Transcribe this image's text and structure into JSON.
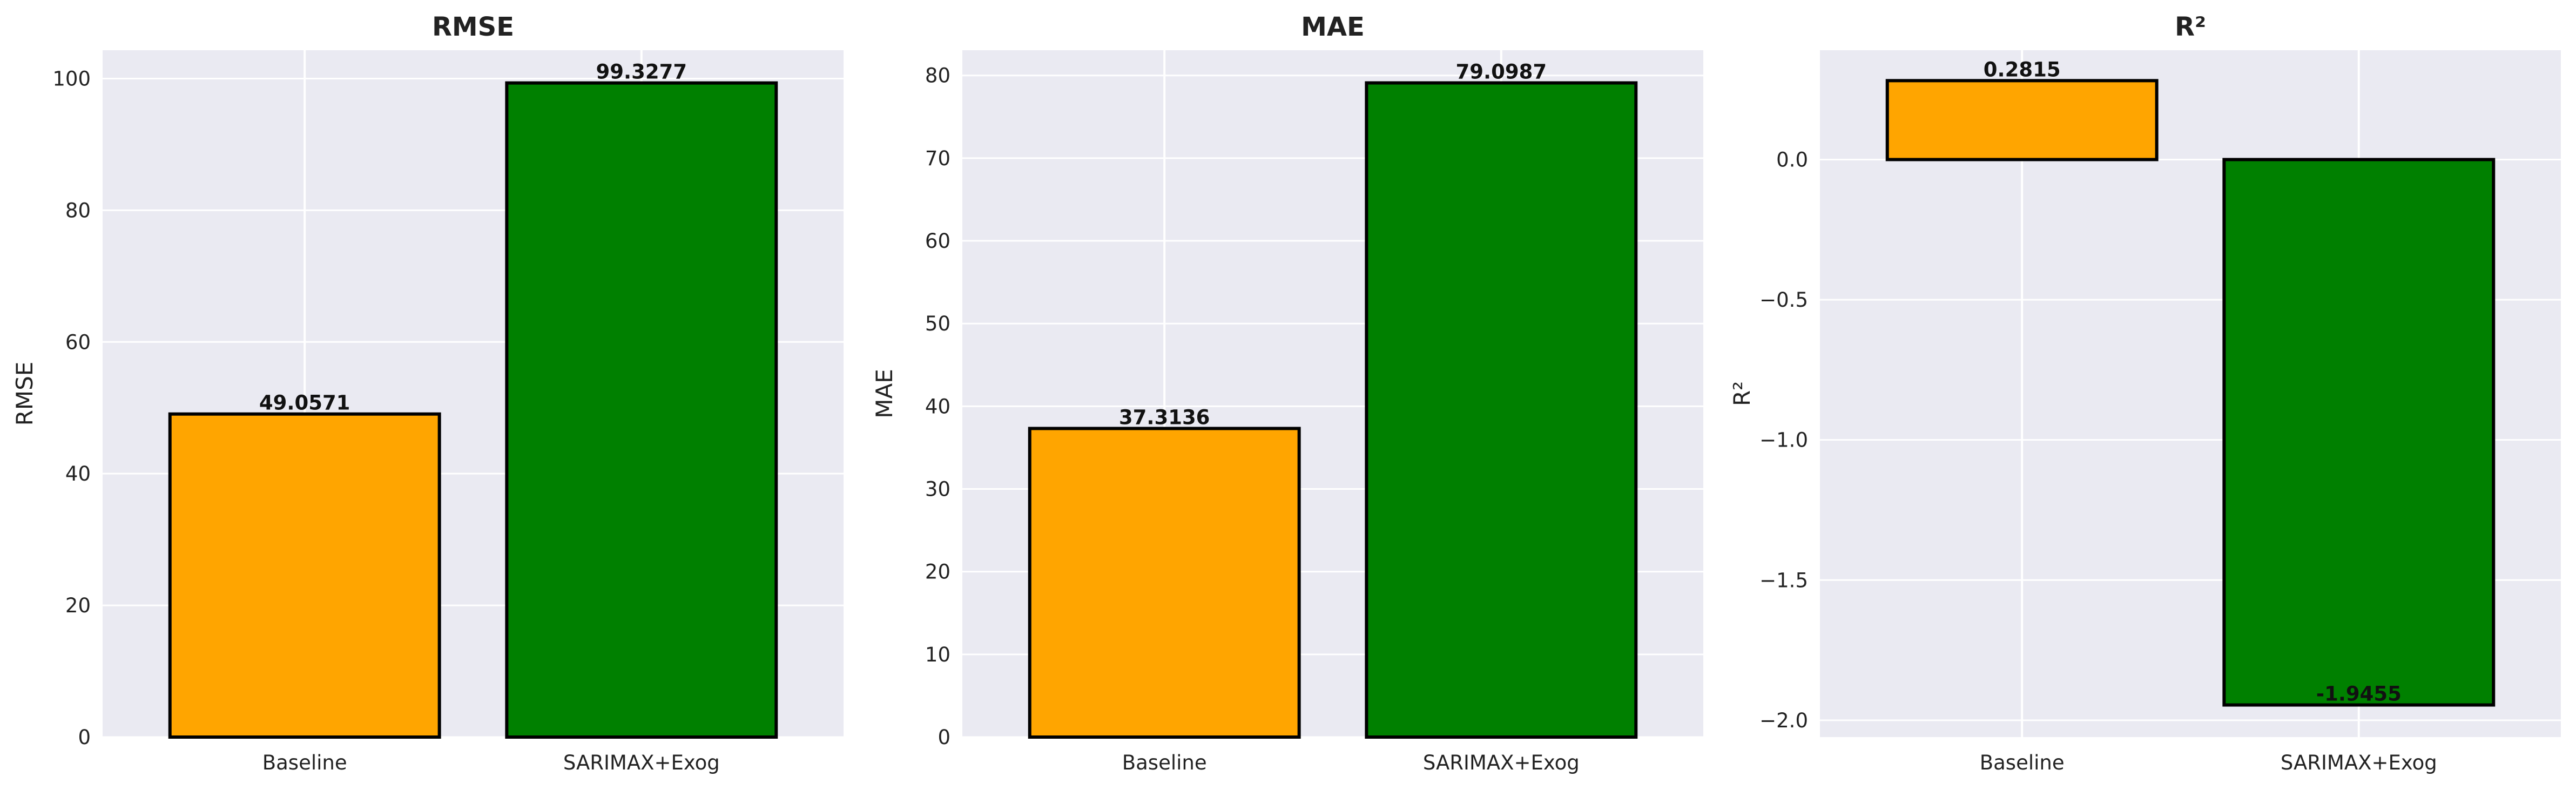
{
  "chart_data": [
    {
      "type": "bar",
      "title": "RMSE",
      "ylabel": "RMSE",
      "xlabel": "",
      "categories": [
        "Baseline",
        "SARIMAX+Exog"
      ],
      "values": [
        49.0571,
        99.3277
      ],
      "value_labels": [
        "49.0571",
        "99.3277"
      ],
      "colors": [
        "#ffa500",
        "#008000"
      ],
      "ylim": [
        0,
        104.3
      ],
      "yticks": [
        0,
        20,
        40,
        60,
        80,
        100
      ],
      "ytick_labels": [
        "0",
        "20",
        "40",
        "60",
        "80",
        "100"
      ],
      "grid": true
    },
    {
      "type": "bar",
      "title": "MAE",
      "ylabel": "MAE",
      "xlabel": "",
      "categories": [
        "Baseline",
        "SARIMAX+Exog"
      ],
      "values": [
        37.3136,
        79.0987
      ],
      "value_labels": [
        "37.3136",
        "79.0987"
      ],
      "colors": [
        "#ffa500",
        "#008000"
      ],
      "ylim": [
        0,
        83.05
      ],
      "yticks": [
        0,
        10,
        20,
        30,
        40,
        50,
        60,
        70,
        80
      ],
      "ytick_labels": [
        "0",
        "10",
        "20",
        "30",
        "40",
        "50",
        "60",
        "70",
        "80"
      ],
      "grid": true
    },
    {
      "type": "bar",
      "title": "R²",
      "ylabel": "R²",
      "xlabel": "",
      "categories": [
        "Baseline",
        "SARIMAX+Exog"
      ],
      "values": [
        0.2815,
        -1.9455
      ],
      "value_labels": [
        "0.2815",
        "-1.9455"
      ],
      "colors": [
        "#ffa500",
        "#008000"
      ],
      "ylim": [
        -2.06,
        0.39
      ],
      "yticks": [
        0,
        -0.5,
        -1,
        -1.5,
        -2
      ],
      "ytick_labels": [
        "0.0",
        "−0.5",
        "−1.0",
        "−1.5",
        "−2.0"
      ],
      "grid": true
    }
  ]
}
